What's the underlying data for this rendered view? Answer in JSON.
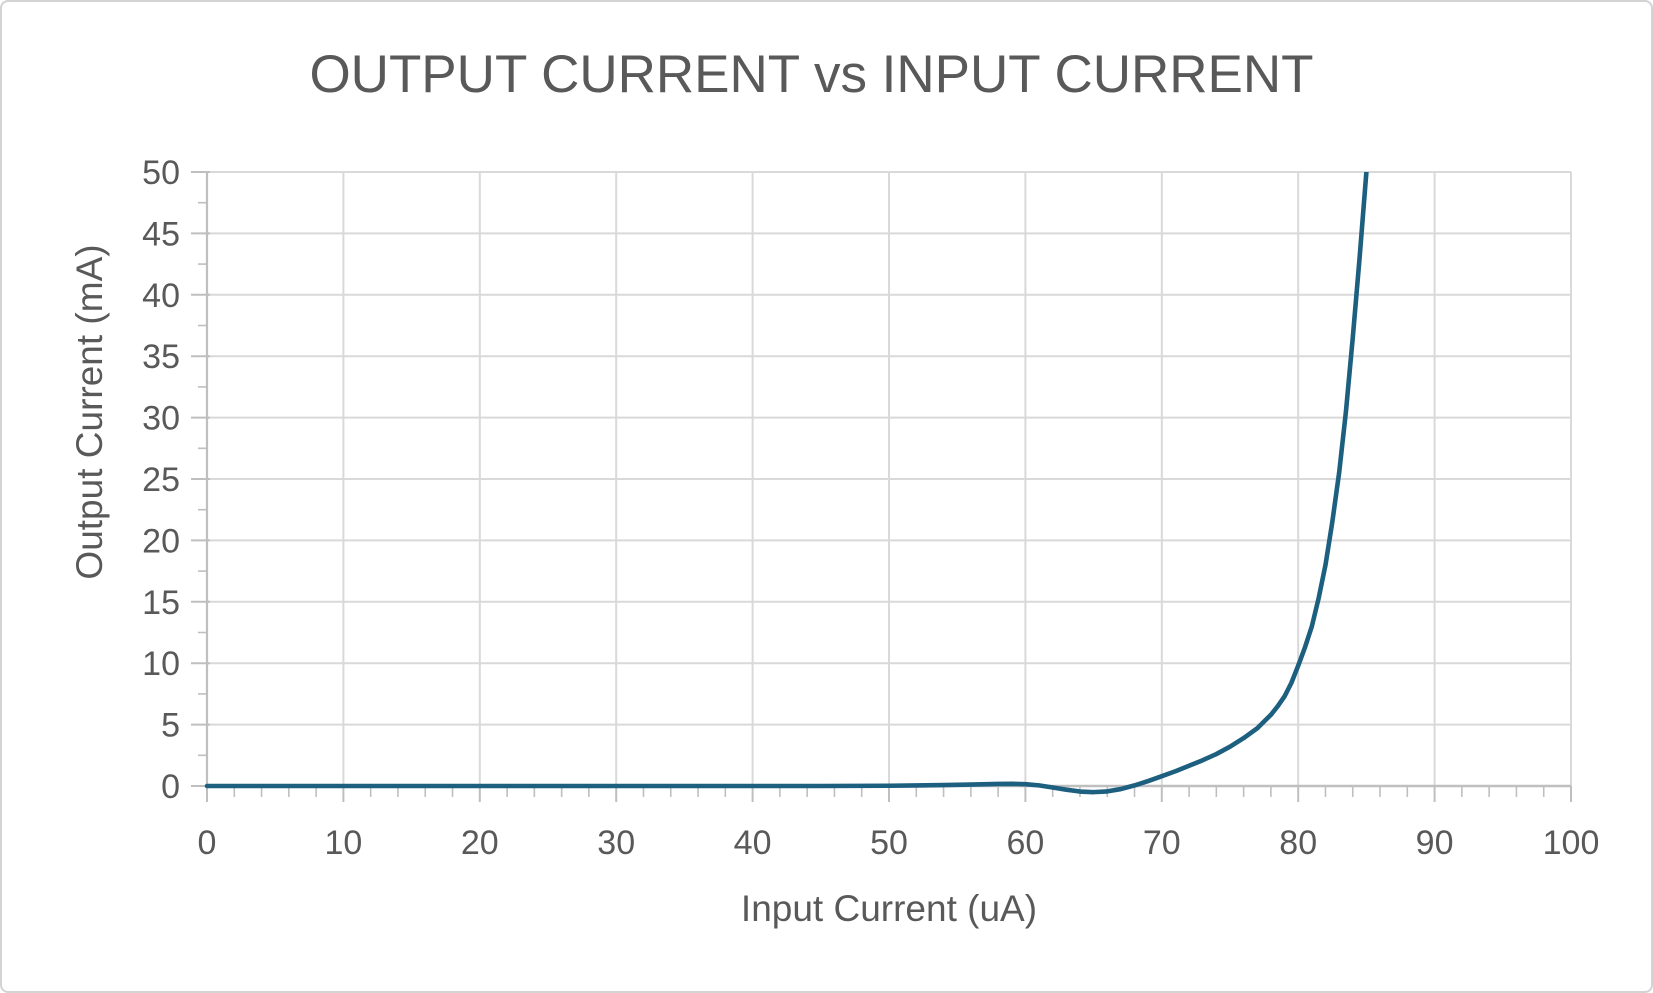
{
  "chart_data": {
    "type": "line",
    "title": "OUTPUT CURRENT vs INPUT CURRENT",
    "xlabel": "Input Current (uA)",
    "ylabel": "Output Current (mA)",
    "xlim": [
      0,
      100
    ],
    "ylim": [
      0,
      50
    ],
    "x_ticks": [
      0,
      10,
      20,
      30,
      40,
      50,
      60,
      70,
      80,
      90,
      100
    ],
    "y_ticks": [
      0,
      5,
      10,
      15,
      20,
      25,
      30,
      35,
      40,
      45,
      50
    ],
    "x_minor_step": 2,
    "y_minor_step": 2.5,
    "grid": "major gridlines on (x and y)",
    "legend": "none",
    "series": [
      {
        "name": "Output Current",
        "color": "#1d5f7f",
        "points": [
          [
            0,
            0
          ],
          [
            5,
            0
          ],
          [
            10,
            0
          ],
          [
            15,
            0
          ],
          [
            20,
            0
          ],
          [
            25,
            0
          ],
          [
            30,
            0
          ],
          [
            35,
            0
          ],
          [
            40,
            0
          ],
          [
            45,
            0
          ],
          [
            50,
            0.02
          ],
          [
            52,
            0.05
          ],
          [
            54,
            0.08
          ],
          [
            56,
            0.12
          ],
          [
            58,
            0.17
          ],
          [
            59,
            0.18
          ],
          [
            60,
            0.15
          ],
          [
            61,
            0.05
          ],
          [
            62,
            -0.12
          ],
          [
            63,
            -0.3
          ],
          [
            64,
            -0.45
          ],
          [
            65,
            -0.5
          ],
          [
            66,
            -0.44
          ],
          [
            67,
            -0.25
          ],
          [
            68,
            0.05
          ],
          [
            69,
            0.4
          ],
          [
            70,
            0.8
          ],
          [
            71,
            1.2
          ],
          [
            72,
            1.65
          ],
          [
            73,
            2.1
          ],
          [
            74,
            2.6
          ],
          [
            75,
            3.2
          ],
          [
            76,
            3.9
          ],
          [
            77,
            4.7
          ],
          [
            78,
            5.8
          ],
          [
            78.5,
            6.5
          ],
          [
            79,
            7.3
          ],
          [
            79.5,
            8.4
          ],
          [
            80,
            9.8
          ],
          [
            80.5,
            11.3
          ],
          [
            81,
            13
          ],
          [
            81.5,
            15.3
          ],
          [
            82,
            18
          ],
          [
            82.5,
            21.5
          ],
          [
            83,
            25.5
          ],
          [
            83.5,
            30.5
          ],
          [
            84,
            36.5
          ],
          [
            84.5,
            43
          ],
          [
            85,
            50
          ],
          [
            85.3,
            54
          ]
        ]
      }
    ]
  },
  "colors": {
    "line": "#1d5f7f",
    "gridline": "#d9d9d9",
    "axis": "#bfbfbf",
    "text": "#595959",
    "border": "#d3d3d3",
    "background": "#ffffff"
  }
}
